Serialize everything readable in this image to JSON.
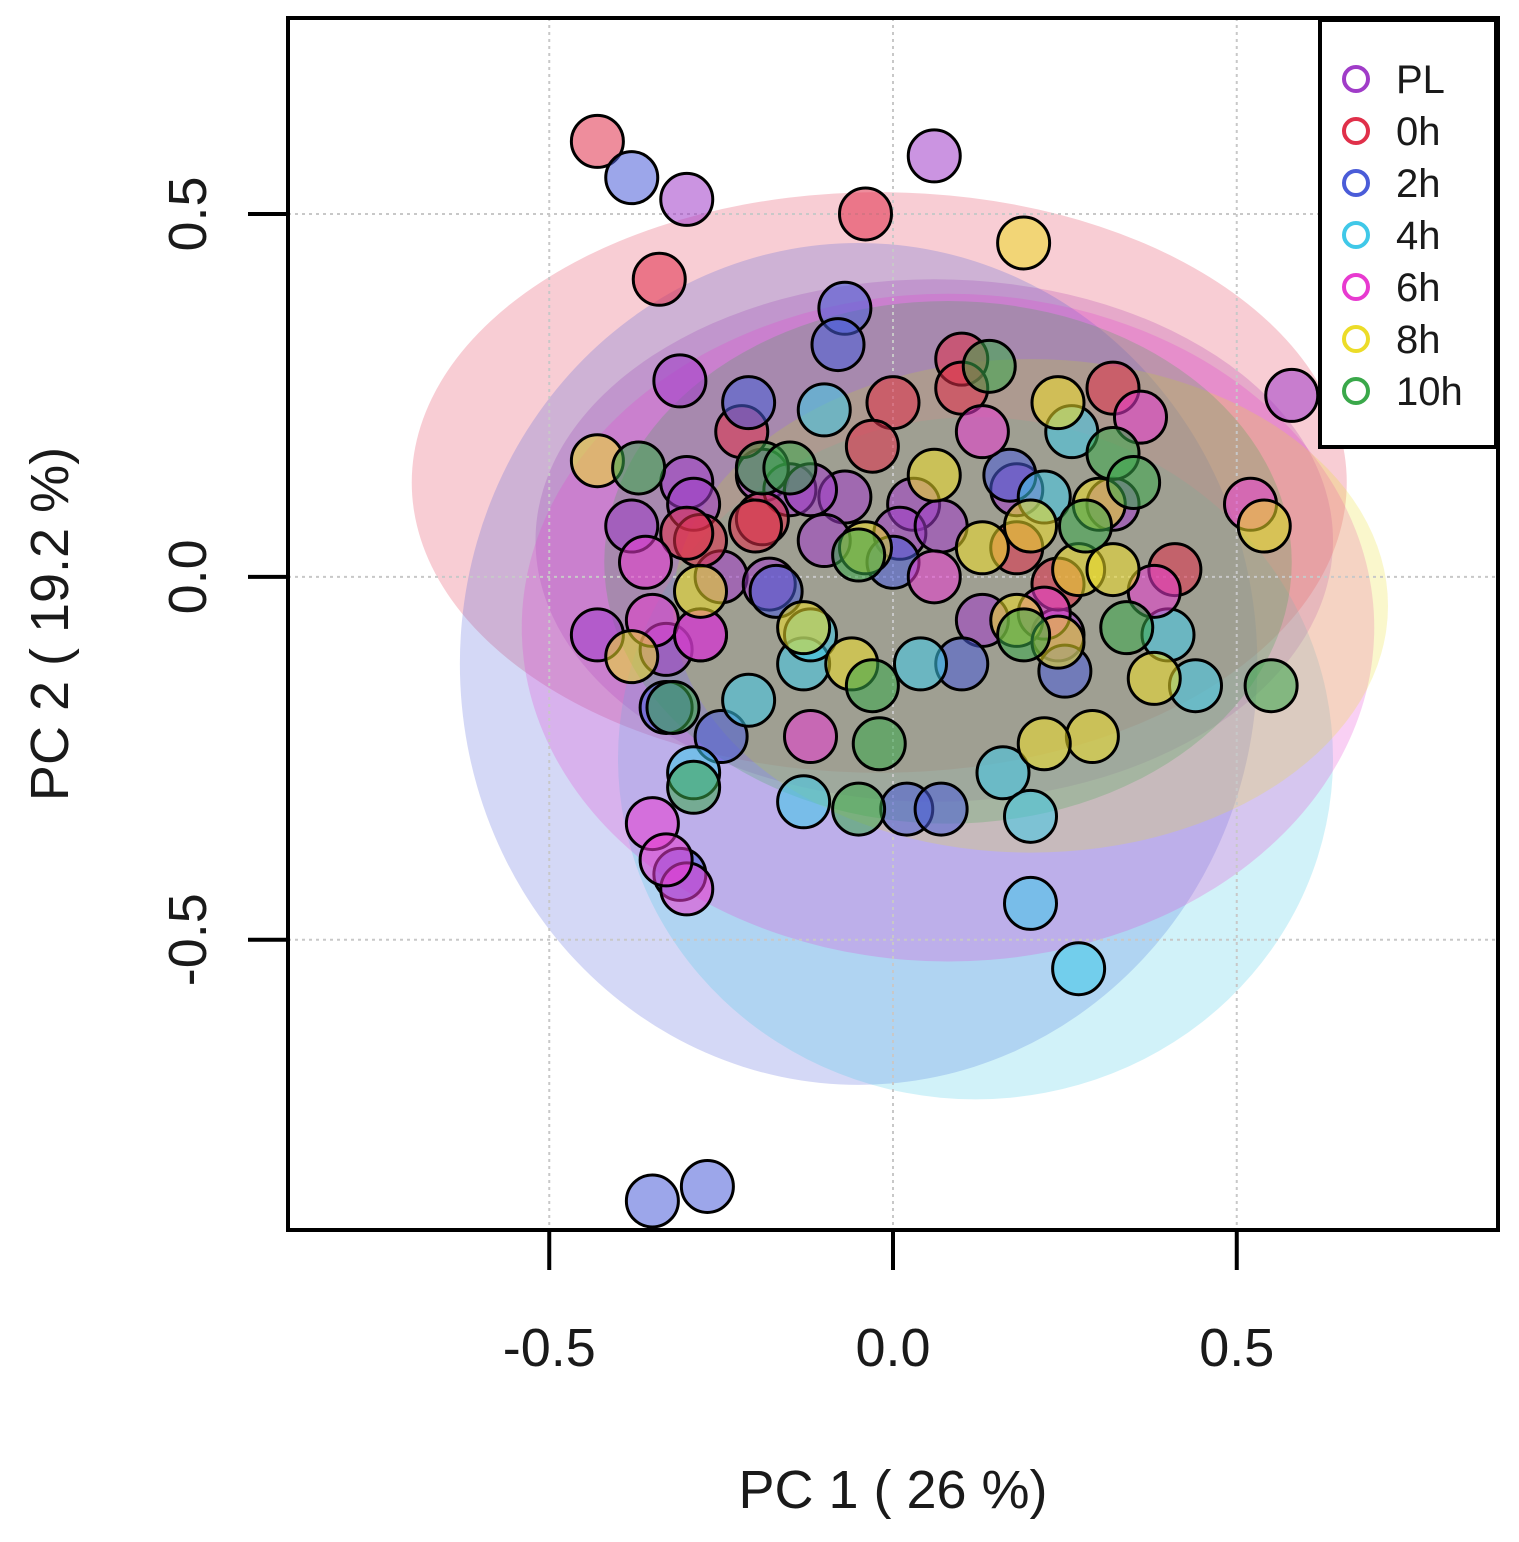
{
  "chart_data": {
    "type": "scatter",
    "title": "",
    "xlabel": "PC 1 ( 26 %)",
    "ylabel": "PC 2 ( 19.2 %)",
    "xlim": [
      -0.88,
      0.88
    ],
    "ylim": [
      -0.9,
      0.77
    ],
    "xticks": [
      -0.5,
      0.0,
      0.5
    ],
    "yticks": [
      -0.5,
      0.0,
      0.5
    ],
    "xtick_labels": [
      "-0.5",
      "0.0",
      "0.5"
    ],
    "ytick_labels": [
      "-0.5",
      "0.0",
      "0.5"
    ],
    "grid": true,
    "legend_position": "top-right",
    "ellipses": true,
    "series": [
      {
        "name": "PL",
        "color": "#a03cc8",
        "ellipse": {
          "cx": 0.06,
          "cy": 0.05,
          "rx": 0.58,
          "ry": 0.36
        },
        "x": [
          0.06,
          -0.3,
          -0.31,
          0.58,
          -0.38,
          -0.3,
          -0.29,
          -0.25,
          -0.19,
          -0.15,
          -0.07,
          0.03,
          0.18,
          0.32,
          -0.43,
          -0.33,
          -0.28,
          -0.18,
          -0.1,
          0.01,
          0.13,
          0.24,
          -0.12,
          0.07
        ],
        "y": [
          0.58,
          0.52,
          0.27,
          0.25,
          0.07,
          0.13,
          0.1,
          0.0,
          0.14,
          0.12,
          0.11,
          0.1,
          0.12,
          0.1,
          -0.08,
          -0.1,
          -0.08,
          -0.01,
          0.05,
          0.06,
          -0.06,
          -0.08,
          0.12,
          0.07
        ]
      },
      {
        "name": "0h",
        "color": "#e0304a",
        "ellipse": {
          "cx": -0.02,
          "cy": 0.13,
          "rx": 0.68,
          "ry": 0.4
        },
        "x": [
          -0.43,
          -0.34,
          -0.04,
          0.1,
          0.32,
          -0.0,
          -0.03,
          -0.22,
          -0.19,
          -0.28,
          -0.3,
          0.1,
          -0.2,
          0.18,
          0.41,
          0.24
        ],
        "y": [
          0.6,
          0.41,
          0.5,
          0.3,
          0.26,
          0.24,
          0.18,
          0.2,
          0.08,
          0.05,
          0.06,
          0.26,
          0.07,
          0.04,
          0.01,
          -0.01
        ]
      },
      {
        "name": "2h",
        "color": "#4a5cd8",
        "ellipse": {
          "cx": -0.05,
          "cy": -0.12,
          "rx": 0.58,
          "ry": 0.58
        },
        "x": [
          -0.38,
          -0.07,
          -0.08,
          -0.21,
          -0.35,
          -0.27,
          0.02,
          0.07,
          0.25,
          -0.31,
          -0.25,
          0.0,
          0.1,
          0.17,
          -0.33,
          -0.17
        ],
        "y": [
          0.55,
          0.37,
          0.32,
          0.24,
          -0.86,
          -0.84,
          -0.32,
          -0.32,
          -0.13,
          -0.41,
          -0.22,
          0.02,
          -0.12,
          0.14,
          -0.18,
          -0.02
        ]
      },
      {
        "name": "4h",
        "color": "#40c8e8",
        "ellipse": {
          "cx": 0.12,
          "cy": -0.25,
          "rx": 0.52,
          "ry": 0.47
        },
        "x": [
          -0.1,
          0.27,
          0.2,
          0.26,
          0.4,
          0.44,
          -0.13,
          -0.21,
          -0.13,
          0.04,
          0.16,
          0.2,
          -0.29,
          -0.12,
          0.22
        ],
        "y": [
          0.23,
          -0.54,
          -0.45,
          0.2,
          -0.08,
          -0.15,
          -0.31,
          -0.17,
          -0.12,
          -0.12,
          -0.27,
          -0.33,
          -0.27,
          -0.08,
          0.11
        ]
      },
      {
        "name": "6h",
        "color": "#e83ad0",
        "ellipse": {
          "cx": 0.08,
          "cy": -0.07,
          "rx": 0.62,
          "ry": 0.46
        },
        "x": [
          0.52,
          0.36,
          -0.12,
          -0.3,
          -0.35,
          -0.33,
          0.38,
          0.22,
          0.06,
          -0.36,
          -0.35,
          -0.28,
          0.13
        ],
        "y": [
          0.1,
          0.22,
          -0.22,
          -0.43,
          -0.34,
          -0.39,
          -0.02,
          -0.05,
          0.0,
          0.02,
          -0.06,
          -0.08,
          0.2
        ]
      },
      {
        "name": "8h",
        "color": "#ecdc28",
        "ellipse": {
          "cx": 0.2,
          "cy": -0.04,
          "rx": 0.52,
          "ry": 0.34
        },
        "x": [
          0.19,
          0.24,
          0.3,
          0.29,
          0.22,
          -0.28,
          -0.06,
          0.06,
          0.13,
          0.2,
          0.27,
          0.38,
          0.54,
          -0.43,
          -0.38,
          -0.13,
          0.18,
          0.32,
          0.24,
          -0.04
        ],
        "y": [
          0.46,
          0.24,
          0.1,
          -0.22,
          -0.23,
          -0.02,
          -0.12,
          0.14,
          0.04,
          0.07,
          0.01,
          -0.14,
          0.07,
          0.16,
          -0.11,
          -0.07,
          -0.06,
          0.01,
          -0.09,
          0.04
        ]
      },
      {
        "name": "10h",
        "color": "#3aa84a",
        "ellipse": {
          "cx": 0.08,
          "cy": 0.02,
          "rx": 0.5,
          "ry": 0.36
        },
        "x": [
          0.14,
          0.32,
          0.35,
          -0.37,
          -0.29,
          0.55,
          -0.05,
          -0.02,
          -0.05,
          -0.32,
          -0.19,
          0.28,
          0.19,
          -0.03,
          -0.15,
          0.34
        ],
        "y": [
          0.29,
          0.17,
          0.13,
          0.15,
          -0.29,
          -0.15,
          -0.32,
          -0.23,
          0.03,
          -0.18,
          0.15,
          0.07,
          -0.08,
          -0.15,
          0.15,
          -0.07
        ]
      }
    ]
  }
}
